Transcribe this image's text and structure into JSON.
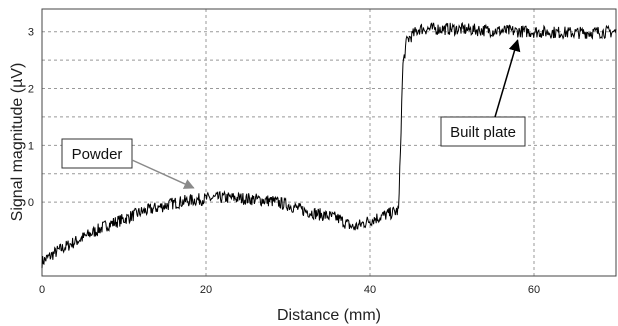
{
  "chart_data": {
    "type": "line",
    "title": "",
    "xlabel": "Distance (mm)",
    "ylabel": "Signal magnitude (µV)",
    "xlim": [
      0,
      70
    ],
    "ylim": [
      -1.3,
      3.4
    ],
    "x_ticks": [
      0,
      20,
      40,
      60
    ],
    "y_ticks": [
      0,
      1,
      2,
      3
    ],
    "x_tick_labels": [
      "0",
      "20",
      "40",
      "60"
    ],
    "y_tick_labels": [
      "0",
      "1",
      "2",
      "3"
    ],
    "grid": "dashed",
    "legend": "none",
    "series": [
      {
        "color": "#000000",
        "x": [
          0,
          2,
          4,
          6,
          8,
          10,
          12,
          14,
          16,
          18,
          20,
          22,
          24,
          26,
          28,
          30,
          32,
          34,
          36,
          38,
          40,
          42,
          43.5,
          44,
          44.5,
          46,
          50,
          55,
          60,
          65,
          70
        ],
        "y": [
          -1.05,
          -0.85,
          -0.7,
          -0.55,
          -0.4,
          -0.3,
          -0.18,
          -0.1,
          -0.02,
          0.03,
          0.06,
          0.08,
          0.07,
          0.05,
          0.02,
          -0.05,
          -0.15,
          -0.22,
          -0.28,
          -0.45,
          -0.32,
          -0.22,
          -0.15,
          2.4,
          2.85,
          3.05,
          3.05,
          3.02,
          3.0,
          2.98,
          3.0
        ]
      }
    ],
    "annotations": [
      {
        "text": "Powder",
        "x": 18.5,
        "y": 0.25
      },
      {
        "text": "Built plate",
        "x": 58.0,
        "y": 2.85
      }
    ]
  }
}
